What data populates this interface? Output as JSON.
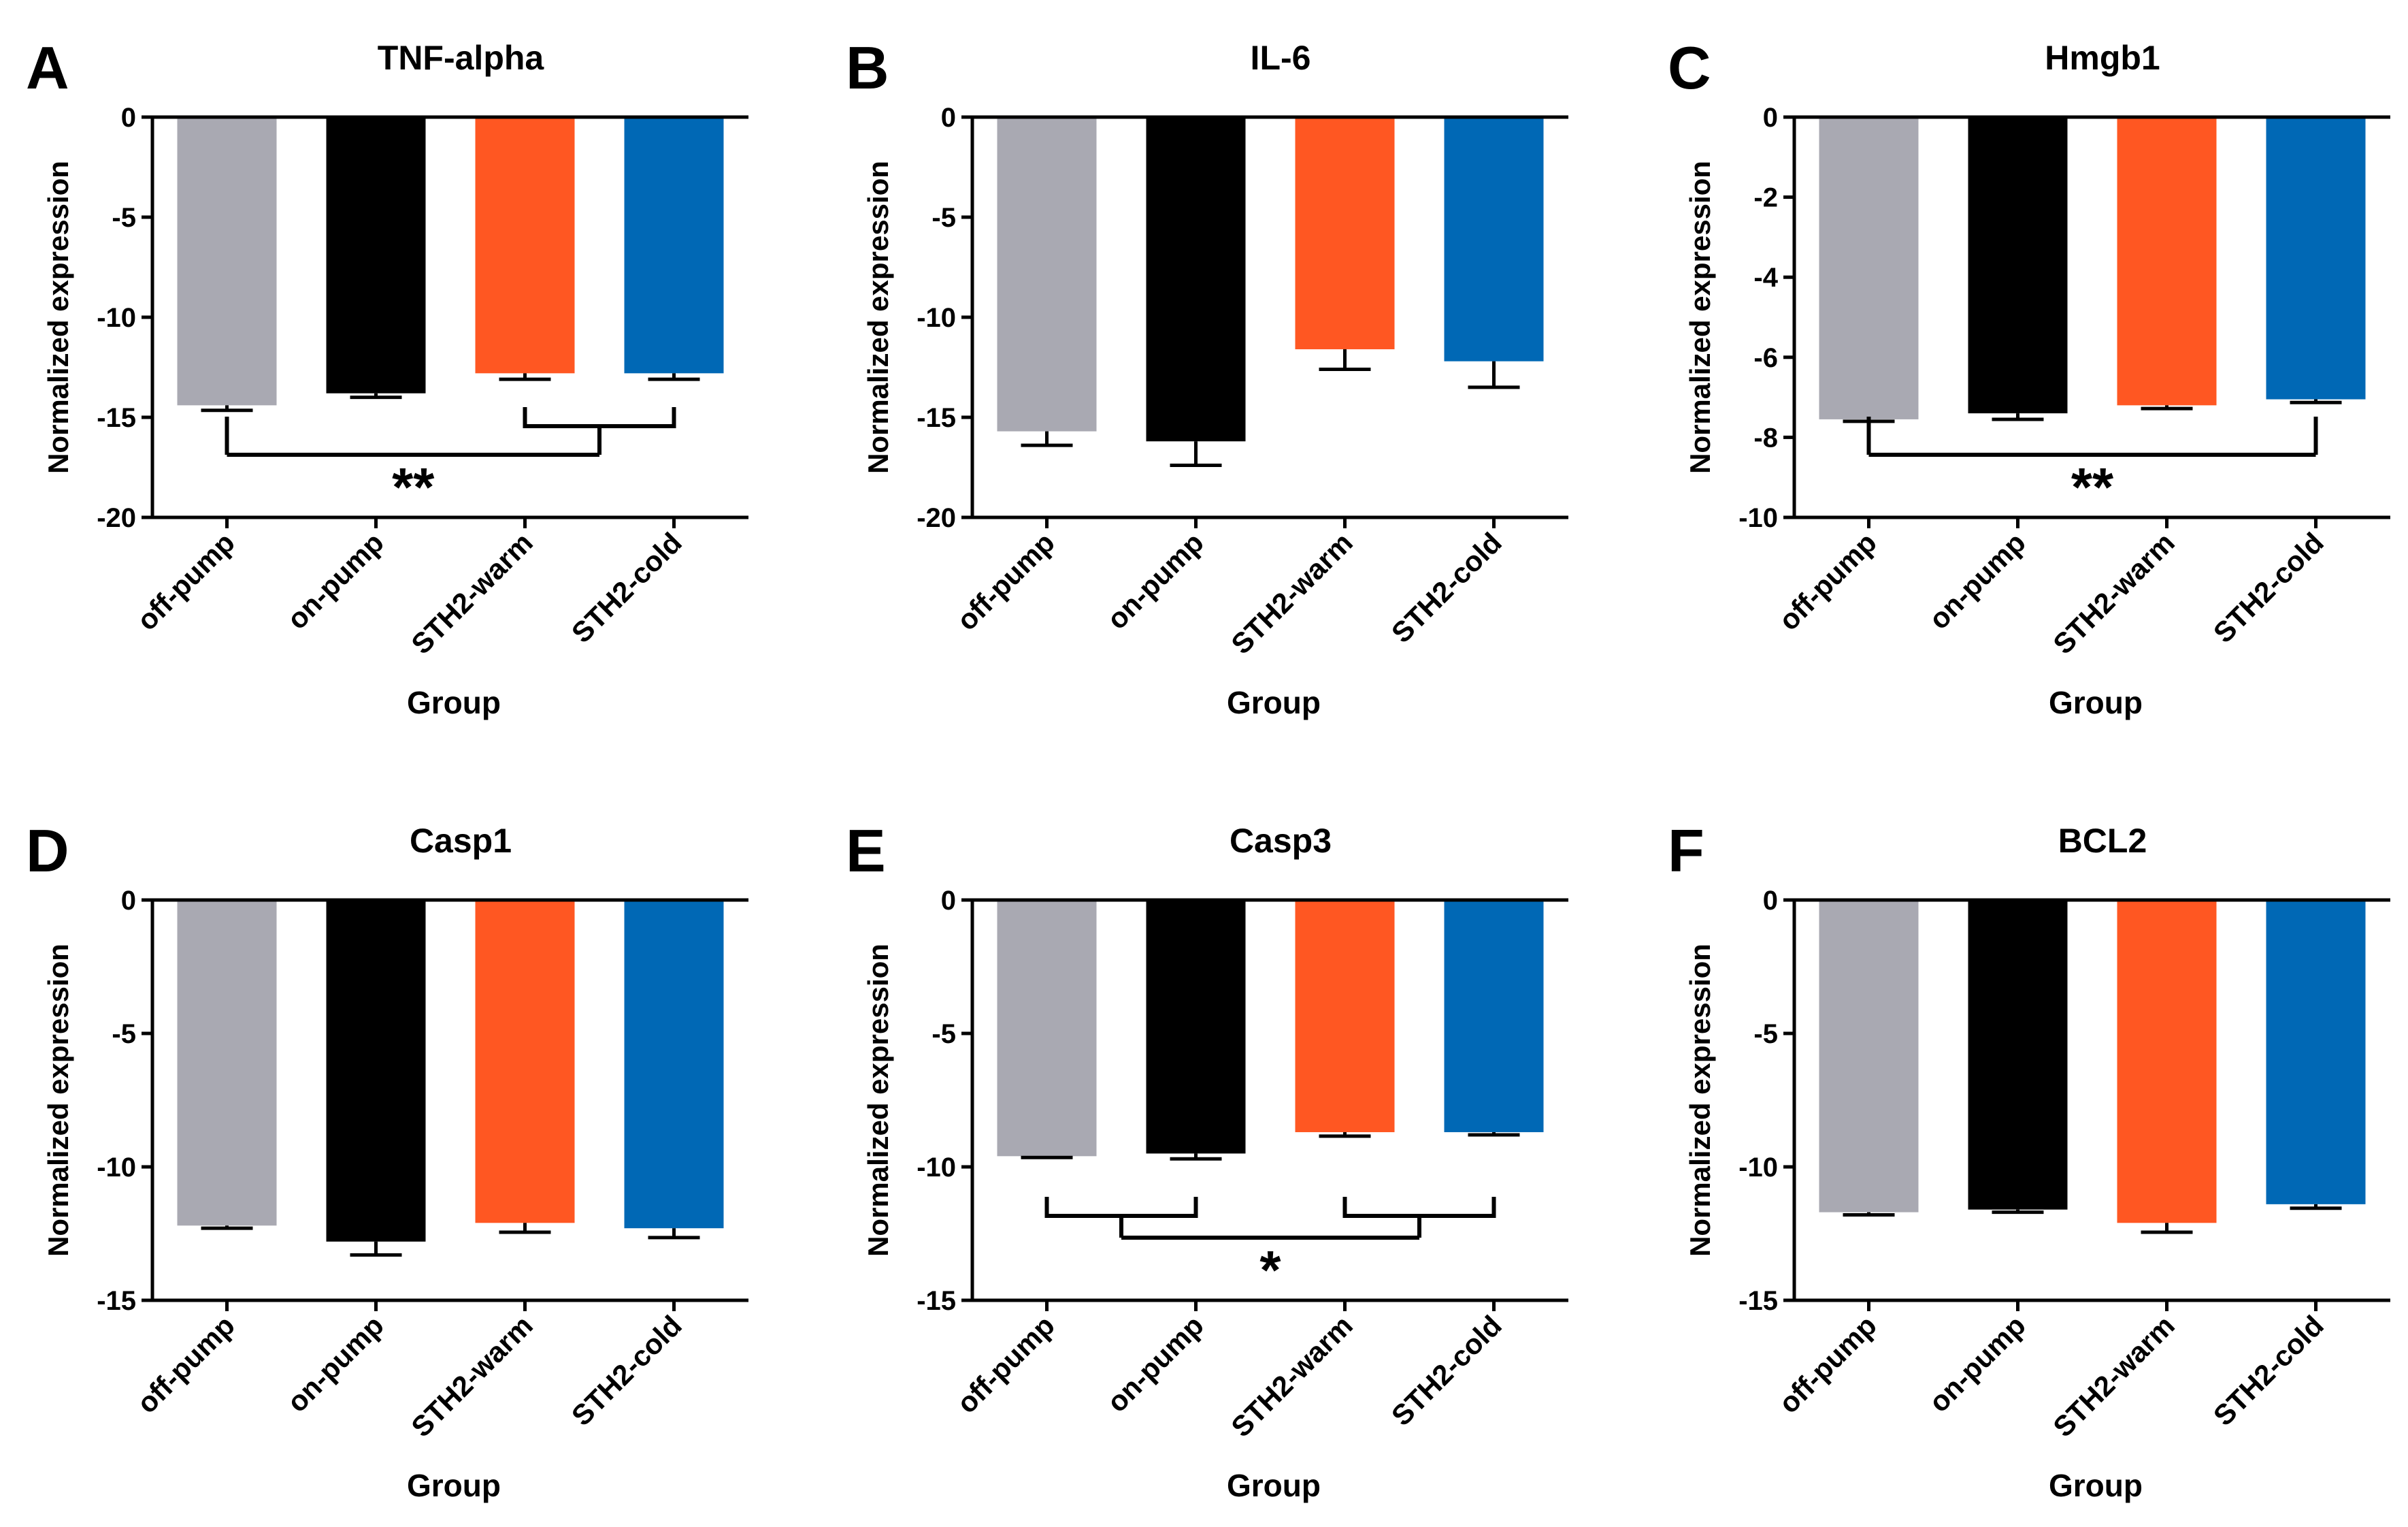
{
  "figure": {
    "colors": {
      "off-pump": "#a9a9b2",
      "on-pump": "#000000",
      "STH2-warm": "#ff5722",
      "STH2-cold": "#0068b5"
    }
  },
  "chart_data": [
    {
      "panel": "A",
      "type": "bar",
      "title": "TNF-alpha",
      "xlabel": "Group",
      "ylabel": "Normalized expression",
      "categories": [
        "off-pump",
        "on-pump",
        "STH2-warm",
        "STH2-cold"
      ],
      "values": [
        -14.4,
        -13.8,
        -12.8,
        -12.8
      ],
      "errors": [
        0.25,
        0.2,
        0.3,
        0.3
      ],
      "ylim": [
        -20,
        0
      ],
      "yticks": [
        0,
        -5,
        -10,
        -15,
        -20
      ],
      "ytick_labels": [
        "0",
        "-5",
        "-10",
        "-15",
        "-20"
      ],
      "significance": [
        {
          "left": [
            0,
            0
          ],
          "right": [
            2,
            3
          ],
          "label": "**"
        }
      ]
    },
    {
      "panel": "B",
      "type": "bar",
      "title": "IL-6",
      "xlabel": "Group",
      "ylabel": "Normalized expression",
      "categories": [
        "off-pump",
        "on-pump",
        "STH2-warm",
        "STH2-cold"
      ],
      "values": [
        -15.7,
        -16.2,
        -11.6,
        -12.2
      ],
      "errors": [
        0.7,
        1.2,
        1.0,
        1.3
      ],
      "ylim": [
        -20,
        0
      ],
      "yticks": [
        0,
        -5,
        -10,
        -15,
        -20
      ],
      "ytick_labels": [
        "0",
        "-5",
        "-10",
        "-15",
        "-20"
      ],
      "significance": []
    },
    {
      "panel": "C",
      "type": "bar",
      "title": "Hmgb1",
      "xlabel": "Group",
      "ylabel": "Normalized expression",
      "categories": [
        "off-pump",
        "on-pump",
        "STH2-warm",
        "STH2-cold"
      ],
      "values": [
        -7.55,
        -7.4,
        -7.2,
        -7.05
      ],
      "errors": [
        0.05,
        0.15,
        0.08,
        0.08
      ],
      "ylim": [
        -10,
        0
      ],
      "yticks": [
        0,
        -2,
        -4,
        -6,
        -8,
        -10
      ],
      "ytick_labels": [
        "0",
        "-2",
        "-4",
        "-6",
        "-8",
        "-10"
      ],
      "significance": [
        {
          "left": [
            0,
            0
          ],
          "right": [
            3,
            3
          ],
          "label": "**"
        }
      ]
    },
    {
      "panel": "D",
      "type": "bar",
      "title": "Casp1",
      "xlabel": "Group",
      "ylabel": "Normalized expression",
      "categories": [
        "off-pump",
        "on-pump",
        "STH2-warm",
        "STH2-cold"
      ],
      "values": [
        -12.2,
        -12.8,
        -12.1,
        -12.3
      ],
      "errors": [
        0.1,
        0.5,
        0.35,
        0.35
      ],
      "ylim": [
        -15,
        0
      ],
      "yticks": [
        0,
        -5,
        -10,
        -15
      ],
      "ytick_labels": [
        "0",
        "-5",
        "-10",
        "-15"
      ],
      "significance": []
    },
    {
      "panel": "E",
      "type": "bar",
      "title": "Casp3",
      "xlabel": "Group",
      "ylabel": "Normalized expression",
      "categories": [
        "off-pump",
        "on-pump",
        "STH2-warm",
        "STH2-cold"
      ],
      "values": [
        -9.6,
        -9.5,
        -8.7,
        -8.7
      ],
      "errors": [
        0.05,
        0.2,
        0.15,
        0.1
      ],
      "ylim": [
        -15,
        0
      ],
      "yticks": [
        0,
        -5,
        -10,
        -15
      ],
      "ytick_labels": [
        "0",
        "-5",
        "-10",
        "-15"
      ],
      "significance": [
        {
          "left": [
            0,
            1
          ],
          "right": [
            2,
            3
          ],
          "label": "*"
        }
      ]
    },
    {
      "panel": "F",
      "type": "bar",
      "title": "BCL2",
      "xlabel": "Group",
      "ylabel": "Normalized expression",
      "categories": [
        "off-pump",
        "on-pump",
        "STH2-warm",
        "STH2-cold"
      ],
      "values": [
        -11.7,
        -11.6,
        -12.1,
        -11.4
      ],
      "errors": [
        0.1,
        0.1,
        0.35,
        0.15
      ],
      "ylim": [
        -15,
        0
      ],
      "yticks": [
        0,
        -5,
        -10,
        -15
      ],
      "ytick_labels": [
        "0",
        "-5",
        "-10",
        "-15"
      ],
      "significance": []
    }
  ]
}
